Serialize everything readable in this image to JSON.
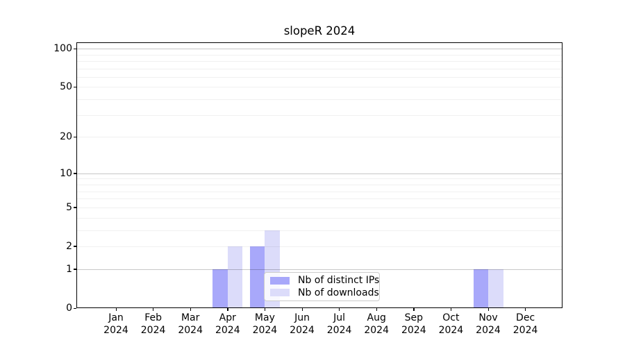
{
  "page": {
    "background": "#ffffff"
  },
  "chart_data": {
    "type": "bar",
    "title": "slopeR 2024",
    "categories": [
      "Jan",
      "Feb",
      "Mar",
      "Apr",
      "May",
      "Jun",
      "Jul",
      "Aug",
      "Sep",
      "Oct",
      "Nov",
      "Dec"
    ],
    "x_year_label": "2024",
    "series": [
      {
        "name": "Nb of distinct IPs",
        "color": "#a8a8fa",
        "values": [
          0,
          0,
          0,
          1,
          2,
          0,
          0,
          0,
          0,
          0,
          1,
          0
        ]
      },
      {
        "name": "Nb of downloads",
        "color": "#dcdcfa",
        "values": [
          0,
          0,
          0,
          2,
          3,
          0,
          0,
          0,
          0,
          0,
          1,
          0
        ]
      }
    ],
    "yscale": "log1p",
    "ylim": [
      0,
      112
    ],
    "ytick_values": [
      0,
      1,
      2,
      5,
      10,
      20,
      50,
      100
    ],
    "ytick_labels": [
      "0",
      "1",
      "2",
      "5",
      "10",
      "20",
      "50",
      "100"
    ],
    "major_grid_values": [
      1,
      10,
      100
    ],
    "minor_grid_values": [
      2,
      3,
      4,
      5,
      6,
      7,
      8,
      9,
      20,
      30,
      40,
      50,
      60,
      70,
      80,
      90
    ],
    "grid": true,
    "legend_position": "inside-bottom-center",
    "axis_color": "#000000"
  }
}
